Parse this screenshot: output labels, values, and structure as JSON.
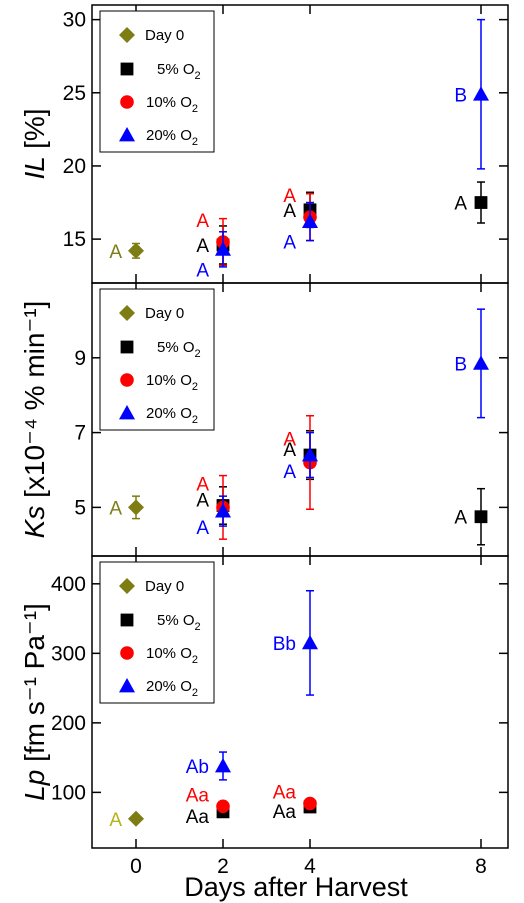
{
  "chart_data": [
    {
      "type": "scatter",
      "panel": "IL",
      "ylabel_main": "IL",
      "ylabel_unit": "[%]",
      "ylim": [
        12,
        31
      ],
      "yticks": [
        "15",
        "20",
        "25",
        "30"
      ],
      "xlim": [
        0,
        9.6
      ],
      "xticks": [
        "0",
        "2",
        "4",
        "8"
      ],
      "legend": {
        "placement": "top-left",
        "entries": [
          {
            "name": "Day 0",
            "sub": "",
            "marker": "diamond",
            "color": "#7d7d14"
          },
          {
            "name": "5% O",
            "sub": "2",
            "marker": "square",
            "color": "#000000"
          },
          {
            "name": "10% O",
            "sub": "2",
            "marker": "circle",
            "color": "#ff0000"
          },
          {
            "name": "20% O",
            "sub": "2",
            "marker": "triangle",
            "color": "#0000ff"
          }
        ]
      },
      "series": [
        {
          "name": "Day 0",
          "marker": "diamond",
          "color": "#7d7d14",
          "points": [
            {
              "x": 0,
              "y": 14.2,
              "err": 0.5,
              "label": "A",
              "label_color": "#7d7d14"
            }
          ]
        },
        {
          "name": "5% O2",
          "marker": "square",
          "color": "#000000",
          "points": [
            {
              "x": 2,
              "y": 14.6,
              "err": 1.3,
              "label": "A",
              "label_color": "#000000"
            },
            {
              "x": 4,
              "y": 17.0,
              "err": 1.2,
              "label": "A",
              "label_color": "#000000"
            },
            {
              "x": 8,
              "y": 17.5,
              "err": 1.4,
              "label": "A",
              "label_color": "#000000"
            }
          ]
        },
        {
          "name": "10% O2",
          "marker": "circle",
          "color": "#ff0000",
          "points": [
            {
              "x": 2,
              "y": 14.8,
              "err": 1.6,
              "label": "A",
              "label_color": "#ff0000"
            },
            {
              "x": 4,
              "y": 16.5,
              "err": 1.6,
              "label": "A",
              "label_color": "#ff0000"
            }
          ]
        },
        {
          "name": "20% O2",
          "marker": "triangle",
          "color": "#0000ff",
          "points": [
            {
              "x": 2,
              "y": 14.3,
              "err": 1.2,
              "label": "A",
              "label_color": "#0000ff"
            },
            {
              "x": 4,
              "y": 16.2,
              "err": 1.3,
              "label": "A",
              "label_color": "#0000ff"
            },
            {
              "x": 8,
              "y": 24.9,
              "err": 5.1,
              "label": "B",
              "label_color": "#0000ff"
            }
          ]
        }
      ]
    },
    {
      "type": "scatter",
      "panel": "Ks",
      "ylabel_main": "Ks",
      "ylabel_unit": "[x10⁻⁴ % min⁻¹]",
      "ylim": [
        3.7,
        11.0
      ],
      "yticks": [
        "5",
        "7",
        "9"
      ],
      "xlim": [
        0,
        9.6
      ],
      "xticks": [
        "0",
        "2",
        "4",
        "8"
      ],
      "legend": {
        "placement": "top-left",
        "entries": [
          {
            "name": "Day 0",
            "sub": "",
            "marker": "diamond",
            "color": "#7d7d14"
          },
          {
            "name": "5% O",
            "sub": "2",
            "marker": "square",
            "color": "#000000"
          },
          {
            "name": "10% O",
            "sub": "2",
            "marker": "circle",
            "color": "#ff0000"
          },
          {
            "name": "20% O",
            "sub": "2",
            "marker": "triangle",
            "color": "#0000ff"
          }
        ]
      },
      "series": [
        {
          "name": "Day 0",
          "marker": "diamond",
          "color": "#7d7d14",
          "points": [
            {
              "x": 0,
              "y": 5.0,
              "err": 0.3,
              "label": "A",
              "label_color": "#7d7d14"
            }
          ]
        },
        {
          "name": "5% O2",
          "marker": "square",
          "color": "#000000",
          "points": [
            {
              "x": 2,
              "y": 5.05,
              "err": 0.5,
              "label": "A",
              "label_color": "#000000"
            },
            {
              "x": 4,
              "y": 6.4,
              "err": 0.65,
              "label": "A",
              "label_color": "#000000"
            },
            {
              "x": 8,
              "y": 4.75,
              "err": 0.75,
              "label": "A",
              "label_color": "#000000"
            }
          ]
        },
        {
          "name": "10% O2",
          "marker": "circle",
          "color": "#ff0000",
          "points": [
            {
              "x": 2,
              "y": 5.0,
              "err": 0.85,
              "label": "A",
              "label_color": "#ff0000"
            },
            {
              "x": 4,
              "y": 6.2,
              "err": 1.25,
              "label": "A",
              "label_color": "#ff0000"
            }
          ]
        },
        {
          "name": "20% O2",
          "marker": "triangle",
          "color": "#0000ff",
          "points": [
            {
              "x": 2,
              "y": 4.9,
              "err": 0.4,
              "label": "A",
              "label_color": "#0000ff"
            },
            {
              "x": 4,
              "y": 6.4,
              "err": 0.6,
              "label": "A",
              "label_color": "#0000ff"
            },
            {
              "x": 8,
              "y": 8.85,
              "err": 1.45,
              "label": "B",
              "label_color": "#0000ff"
            }
          ]
        }
      ]
    },
    {
      "type": "scatter",
      "panel": "Lp",
      "ylabel_main": "Lp",
      "ylabel_unit": "[fm s⁻¹ Pa⁻¹]",
      "ylim": [
        20,
        440
      ],
      "yticks": [
        "100",
        "200",
        "300",
        "400"
      ],
      "xlim": [
        0,
        9.6
      ],
      "xticks": [
        "0",
        "2",
        "4",
        "8"
      ],
      "xlabel": "Days after Harvest",
      "legend": {
        "placement": "top-left",
        "entries": [
          {
            "name": "Day 0",
            "sub": "",
            "marker": "diamond",
            "color": "#7d7d14"
          },
          {
            "name": "5% O",
            "sub": "2",
            "marker": "square",
            "color": "#000000"
          },
          {
            "name": "10% O",
            "sub": "2",
            "marker": "circle",
            "color": "#ff0000"
          },
          {
            "name": "20% O",
            "sub": "2",
            "marker": "triangle",
            "color": "#0000ff"
          }
        ]
      },
      "series": [
        {
          "name": "Day 0",
          "marker": "diamond",
          "color": "#7d7d14",
          "points": [
            {
              "x": 0,
              "y": 62,
              "err": 0,
              "label": "A",
              "label_color": "#b4b419"
            }
          ]
        },
        {
          "name": "5% O2",
          "marker": "square",
          "color": "#000000",
          "points": [
            {
              "x": 2,
              "y": 72,
              "err": 4,
              "label": "Aa",
              "label_color": "#000000"
            },
            {
              "x": 4,
              "y": 79,
              "err": 4,
              "label": "Aa",
              "label_color": "#000000"
            }
          ]
        },
        {
          "name": "10% O2",
          "marker": "circle",
          "color": "#ff0000",
          "points": [
            {
              "x": 2,
              "y": 80,
              "err": 5,
              "label": "Aa",
              "label_color": "#ff0000"
            },
            {
              "x": 4,
              "y": 84,
              "err": 5,
              "label": "Aa",
              "label_color": "#ff0000"
            }
          ]
        },
        {
          "name": "20% O2",
          "marker": "triangle",
          "color": "#0000ff",
          "points": [
            {
              "x": 2,
              "y": 138,
              "err": 20,
              "label": "Ab",
              "label_color": "#0000ff"
            },
            {
              "x": 4,
              "y": 315,
              "err": 75,
              "label": "Bb",
              "label_color": "#0000ff"
            }
          ]
        }
      ]
    }
  ]
}
